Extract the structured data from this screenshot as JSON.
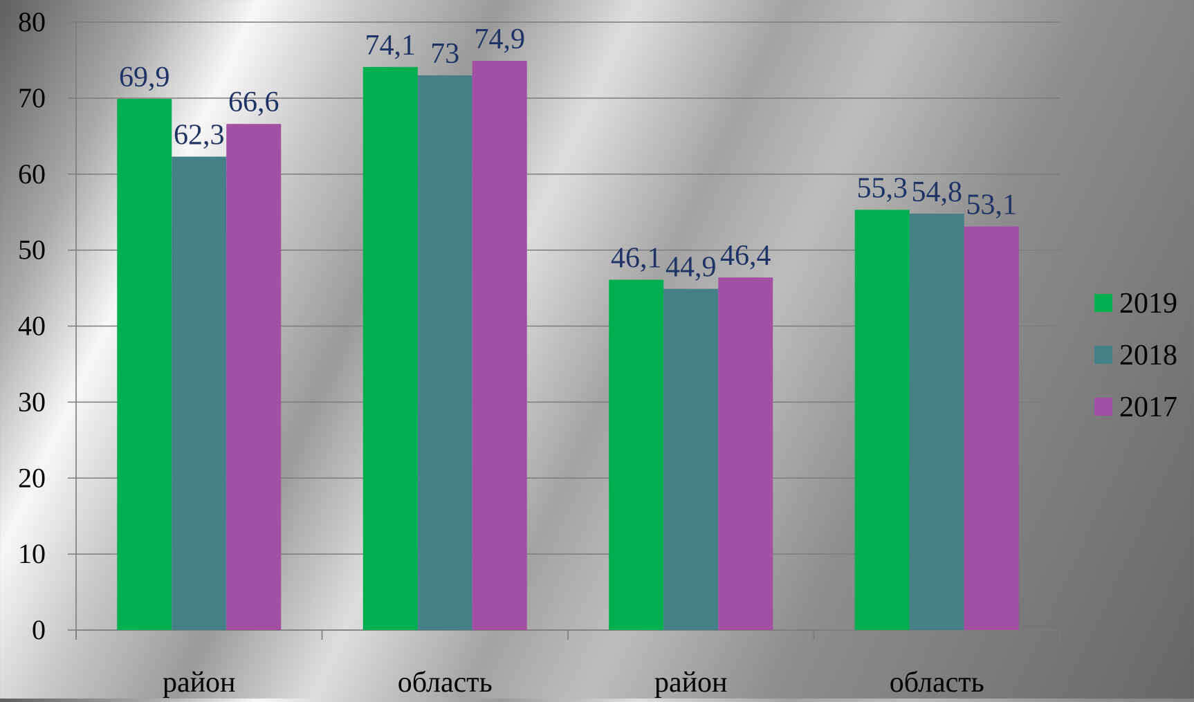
{
  "chart_data": {
    "type": "bar",
    "title": "",
    "xlabel": "",
    "ylabel": "",
    "categories": [
      "район",
      "область",
      "район",
      "область"
    ],
    "series": [
      {
        "name": "2019",
        "values": [
          69.9,
          74.1,
          46.1,
          55.3
        ],
        "labels": [
          "69,9",
          "74,1",
          "46,1",
          "55,3"
        ],
        "color": "#00b050"
      },
      {
        "name": "2018",
        "values": [
          62.3,
          73,
          44.9,
          54.8
        ],
        "labels": [
          "62,3",
          "73",
          "44,9",
          "54,8"
        ],
        "color": "#457f87"
      },
      {
        "name": "2017",
        "values": [
          66.6,
          74.9,
          46.4,
          53.1
        ],
        "labels": [
          "66,6",
          "74,9",
          "46,4",
          "53,1"
        ],
        "color": "#a34fa3"
      }
    ],
    "ylim": [
      0,
      80
    ],
    "yticks": [
      "0",
      "10",
      "20",
      "30",
      "40",
      "50",
      "60",
      "70",
      "80"
    ],
    "grid": true,
    "legend": "right",
    "data_label_color": "#1f3464",
    "gridline_color": "#7c7c7c"
  }
}
